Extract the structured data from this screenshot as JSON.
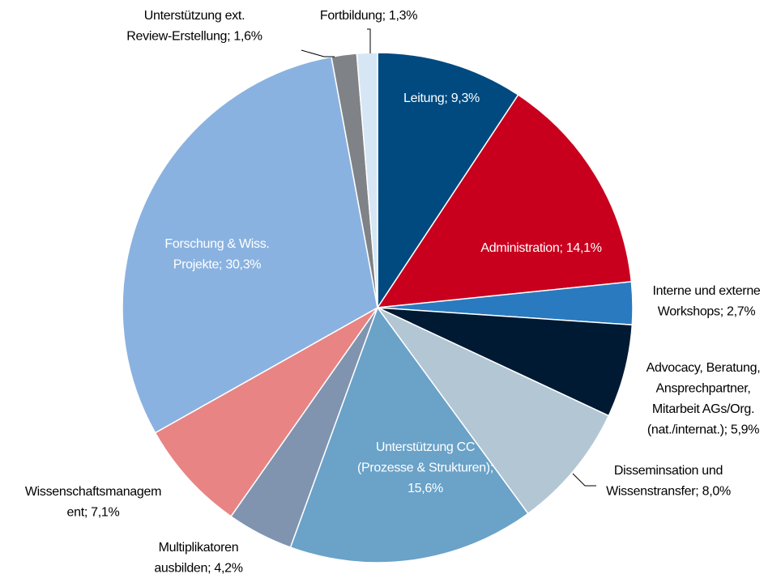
{
  "chart_data": {
    "type": "pie",
    "values": [
      9.3,
      14.1,
      2.7,
      5.9,
      8.0,
      15.6,
      4.2,
      7.1,
      30.3,
      1.6,
      1.3
    ],
    "value_labels": [
      [
        "Leitung; 9,3%"
      ],
      [
        "Administration; 14,1%"
      ],
      [
        "Interne und externe",
        "Workshops; 2,7%"
      ],
      [
        "Advocacy, Beratung,",
        "Ansprechpartner,",
        "Mitarbeit AGs/Org.",
        "(nat./internat.); 5,9%"
      ],
      [
        "Disseminsation und",
        "Wissenstransfer; 8,0%"
      ],
      [
        "Unterstützung CC",
        "(Prozesse & Strukturen);",
        "15,6%"
      ],
      [
        "Multiplikatoren",
        "ausbilden; 4,2%"
      ],
      [
        "Wissenschaftsmanagem",
        "ent; 7,1%"
      ],
      [
        "Forschung & Wiss.",
        "Projekte; 30,3%"
      ],
      [
        "Unterstützung ext.",
        "Review-Erstellung; 1,6%"
      ],
      [
        "Fortbildung; 1,3%"
      ]
    ],
    "colors": [
      "#004a80",
      "#c8001e",
      "#2a7abf",
      "#001a33",
      "#b3c6d4",
      "#6aa2c8",
      "#8094b0",
      "#e98484",
      "#8ab2e0",
      "#7f8387",
      "#d6e6f4"
    ]
  }
}
